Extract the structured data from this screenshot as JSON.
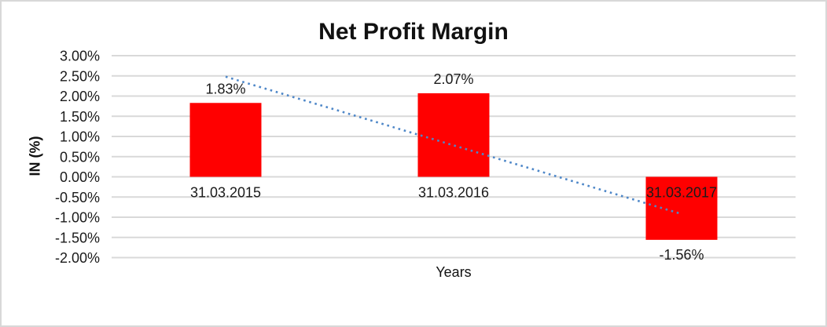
{
  "chart_data": {
    "type": "bar",
    "title": "Net Profit Margin",
    "xlabel": "Years",
    "ylabel": "IN (%)",
    "categories": [
      "31.03.2015",
      "31.03.2016",
      "31.03.2017"
    ],
    "values": [
      1.83,
      2.07,
      -1.56
    ],
    "data_labels": [
      "1.83%",
      "2.07%",
      "-1.56%"
    ],
    "ylim": [
      -2.0,
      3.0
    ],
    "ytick_step": 0.5,
    "ytick_labels": [
      "3.00%",
      "2.50%",
      "2.00%",
      "1.50%",
      "1.00%",
      "0.50%",
      "0.00%",
      "-0.50%",
      "-1.00%",
      "-1.50%",
      "-2.00%"
    ],
    "grid": true,
    "legend": false,
    "colors": {
      "bar": "#FF0000",
      "gridline": "#D9D9D9",
      "trendline": "#4E87C8",
      "text": "#1A1A1A",
      "frame_border": "#D8D8D8"
    },
    "trendline": {
      "type": "linear",
      "style": "dotted",
      "start": {
        "category_index": 0,
        "value": 2.48
      },
      "end": {
        "category_index": 2,
        "value": -0.92
      }
    }
  }
}
